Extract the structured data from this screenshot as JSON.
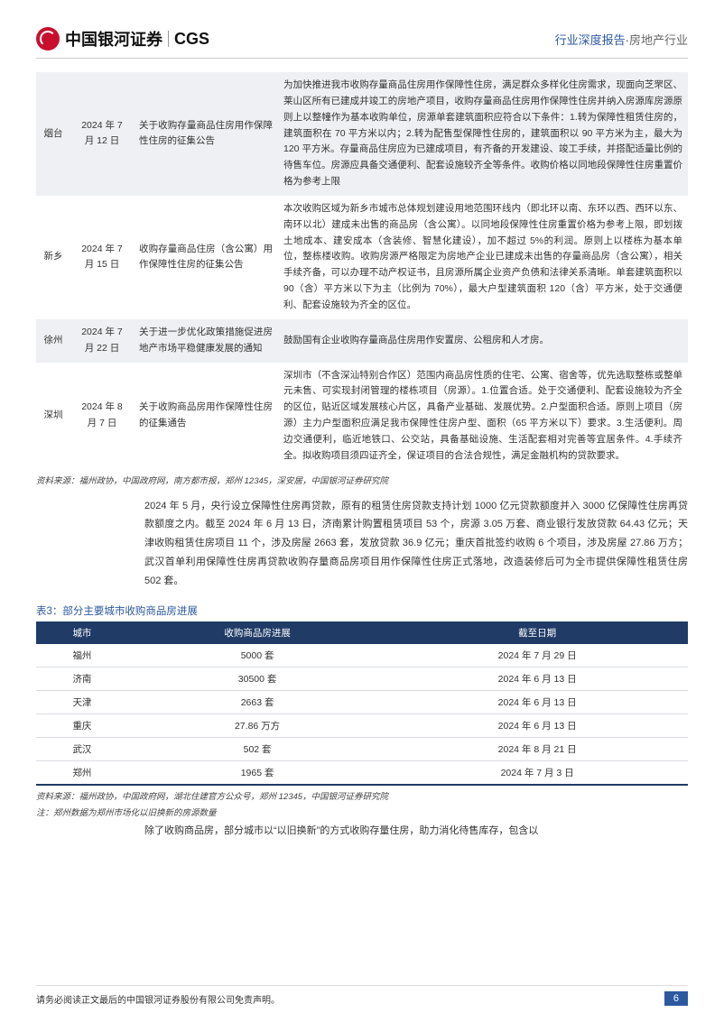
{
  "header": {
    "logo_text": "中国银河证券",
    "logo_cgs": "CGS",
    "category": "行业深度报告",
    "sector": "房地产行业"
  },
  "table1": {
    "rows": [
      {
        "city": "烟台",
        "date": "2024 年 7 月 12 日",
        "title": "关于收购存量商品住房用作保障性住房的征集公告",
        "desc": "为加快推进我市收购存量商品住房用作保障性住房，满足群众多样化住房需求，现面向芝罘区、莱山区所有已建成并竣工的房地产项目，收购存量商品住房用作保障性住房并纳入房源库房源原则上以整幢作为基本收购单位，房源单套建筑面积应符合以下条件：1.转为保障性租赁住房的，建筑面积在 70 平方米以内；2.转为配售型保障性住房的，建筑面积以 90 平方米为主，最大为 120 平方米。存量商品住房应为已建成项目，有齐备的开发建设、竣工手续，并搭配适量比例的待售车位。房源应具备交通便利、配套设施较齐全等条件。收购价格以同地段保障性住房重置价格为参考上限"
      },
      {
        "city": "新乡",
        "date": "2024 年 7 月 15 日",
        "title": "收购存量商品住房（含公寓）用作保障性住房的征集公告",
        "desc": "本次收购区域为新乡市城市总体规划建设用地范围环线内（即北环以南、东环以西、西环以东、南环以北）建成未出售的商品房（含公寓）。以同地段保障性住房重置价格为参考上限，即划拨土地成本、建安成本（含装修、智慧化建设），加不超过 5%的利润。原则上以楼栋为基本单位，整栋楼收购。收购房源严格限定为房地产企业已建成未出售的存量商品房（含公寓），相关手续齐备，可以办理不动产权证书，且房源所属企业资产负债和法律关系清晰。单套建筑面积以 90（含）平方米以下为主（比例为 70%），最大户型建筑面积 120（含）平方米，处于交通便利、配套设施较为齐全的区位。"
      },
      {
        "city": "徐州",
        "date": "2024 年 7 月 22 日",
        "title": "关于进一步优化政策措施促进房地产市场平稳健康发展的通知",
        "desc": "鼓励国有企业收购存量商品住房用作安置房、公租房和人才房。"
      },
      {
        "city": "深圳",
        "date": "2024 年 8 月 7 日",
        "title": "关于收购商品房用作保障性住房的征集通告",
        "desc": "深圳市（不含深汕特别合作区）范围内商品房性质的住宅、公寓、宿舍等，优先选取整栋或整单元未售、可实现封闭管理的楼栋项目（房源）。1.位置合适。处于交通便利、配套设施较为齐全的区位，贴近区域发展核心片区，具备产业基础、发展优势。2.户型面积合适。原则上项目（房源）主力户型面积应满足我市保障性住房户型、面积（65 平方米以下）要求。3.生活便利。周边交通便利，临近地铁口、公交站，具备基础设施、生活配套相对完善等宜居条件。4.手续齐全。拟收购项目须四证齐全，保证项目的合法合规性，满足金融机构的贷款要求。"
      }
    ],
    "source": "资料来源：福州政协，中国政府网，南方都市报，郑州 12345，深安居，中国银河证券研究院"
  },
  "body_para": "2024 年 5 月，央行设立保障性住房再贷款，原有的租赁住房贷款支持计划 1000 亿元贷款额度并入 3000 亿保障性住房再贷款额度之内。截至 2024 年 6 月 13 日，济南累计购置租赁项目 53 个，房源 3.05 万套、商业银行发放贷款 64.43 亿元；天津收购租赁住房项目 11 个，涉及房屋 2663 套，发放贷款 36.9 亿元；重庆首批签约收购 6 个项目，涉及房屋 27.86 万方；武汉首单利用保障性住房再贷款收购存量商品房项目用作保障性住房正式落地，改造装修后可为全市提供保障性租赁住房 502 套。",
  "table3": {
    "caption": "表3：部分主要城市收购商品房进展",
    "headers": {
      "city": "城市",
      "progress": "收购商品房进展",
      "date": "截至日期"
    },
    "rows": [
      {
        "city": "福州",
        "progress": "5000 套",
        "date": "2024 年 7 月 29 日"
      },
      {
        "city": "济南",
        "progress": "30500 套",
        "date": "2024 年 6 月 13 日"
      },
      {
        "city": "天津",
        "progress": "2663 套",
        "date": "2024 年 6 月 13 日"
      },
      {
        "city": "重庆",
        "progress": "27.86 万方",
        "date": "2024 年 6 月 13 日"
      },
      {
        "city": "武汉",
        "progress": "502 套",
        "date": "2024 年 8 月 21 日"
      },
      {
        "city": "郑州",
        "progress": "1965 套",
        "date": "2024 年 7 月 3 日"
      }
    ],
    "source": "资料来源：福州政协，中国政府网，湖北住建官方公众号，郑州 12345，中国银河证券研究院",
    "note": "注：郑州数据为郑州市场化以旧换新的房源数量"
  },
  "body_para2": "除了收购商品房，部分城市以“以旧换新”的方式收购存量住房，助力消化待售库存，包含以",
  "footer": {
    "disclaimer": "请务必阅读正文最后的中国银河证券股份有限公司免责声明。",
    "page": "6"
  },
  "colors": {
    "brand_red": "#c8102e",
    "accent_blue": "#2c5aa0",
    "header_navy": "#1f3b66",
    "row_shade": "#eef0f3",
    "border_gray": "#d9dde3"
  }
}
